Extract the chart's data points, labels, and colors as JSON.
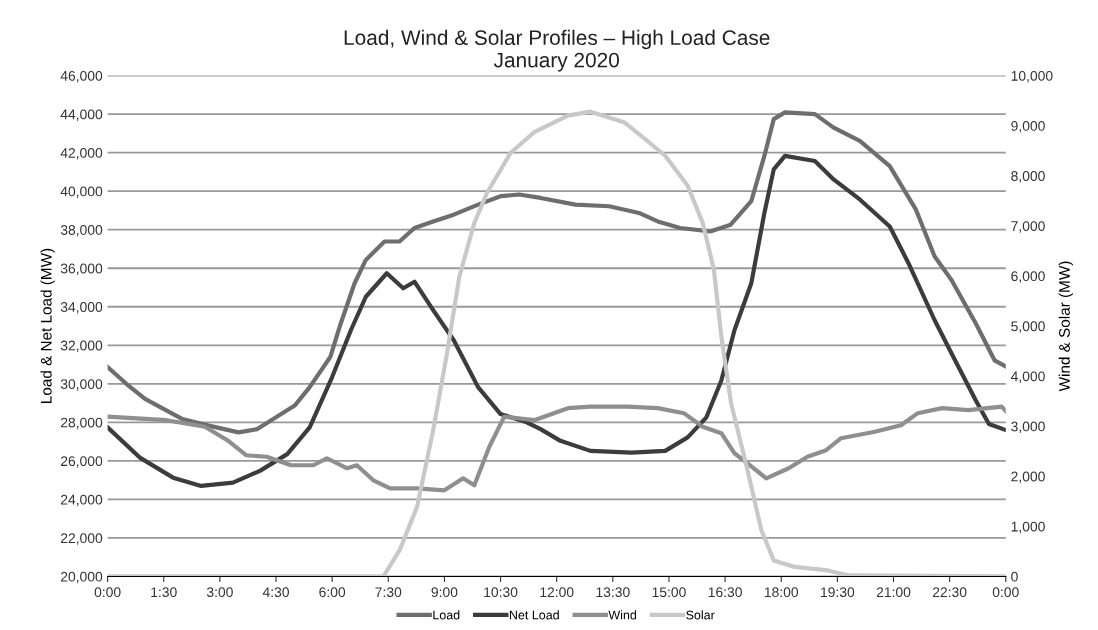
{
  "chart_data": {
    "type": "line",
    "title": "Load, Wind & Solar Profiles – High Load Case\nJanuary 2020",
    "ylabel": "Load & Net Load (MW)",
    "y2label": "Wind & Solar (MW)",
    "xlim": [
      0,
      24
    ],
    "xticks": [
      {
        "value": 0,
        "label": "0:00"
      },
      {
        "value": 1.5,
        "label": "1:30"
      },
      {
        "value": 3,
        "label": "3:00"
      },
      {
        "value": 4.5,
        "label": "4:30"
      },
      {
        "value": 6,
        "label": "6:00"
      },
      {
        "value": 7.5,
        "label": "7:30"
      },
      {
        "value": 9,
        "label": "9:00"
      },
      {
        "value": 10.5,
        "label": "10:30"
      },
      {
        "value": 12,
        "label": "12:00"
      },
      {
        "value": 13.5,
        "label": "13:30"
      },
      {
        "value": 15,
        "label": "15:00"
      },
      {
        "value": 16.5,
        "label": "16:30"
      },
      {
        "value": 18,
        "label": "18:00"
      },
      {
        "value": 19.5,
        "label": "19:30"
      },
      {
        "value": 21,
        "label": "21:00"
      },
      {
        "value": 22.5,
        "label": "22:30"
      },
      {
        "value": 24,
        "label": "0:00"
      }
    ],
    "ylim": [
      20000,
      46000
    ],
    "yticks": [
      {
        "value": 20000,
        "label": "20,000"
      },
      {
        "value": 22000,
        "label": "22,000"
      },
      {
        "value": 24000,
        "label": "24,000"
      },
      {
        "value": 26000,
        "label": "26,000"
      },
      {
        "value": 28000,
        "label": "28,000"
      },
      {
        "value": 30000,
        "label": "30,000"
      },
      {
        "value": 32000,
        "label": "32,000"
      },
      {
        "value": 34000,
        "label": "34,000"
      },
      {
        "value": 36000,
        "label": "36,000"
      },
      {
        "value": 38000,
        "label": "38,000"
      },
      {
        "value": 40000,
        "label": "40,000"
      },
      {
        "value": 42000,
        "label": "42,000"
      },
      {
        "value": 44000,
        "label": "44,000"
      },
      {
        "value": 46000,
        "label": "46,000"
      }
    ],
    "y2lim": [
      0,
      10000
    ],
    "y2ticks": [
      0,
      {
        "value": 1000,
        "label": "1,000"
      },
      {
        "value": 2000,
        "label": "2,000"
      },
      {
        "value": 3000,
        "label": "3,000"
      },
      {
        "value": 4000,
        "label": "4,000"
      },
      {
        "value": 5000,
        "label": "5,000"
      },
      {
        "value": 6000,
        "label": "6,000"
      },
      {
        "value": 7000,
        "label": "7,000"
      },
      {
        "value": 8000,
        "label": "8,000"
      },
      {
        "value": 9000,
        "label": "9,000"
      },
      {
        "value": 10000,
        "label": "10,000"
      }
    ],
    "grid": "y",
    "legend": "bottom",
    "marker": "none",
    "line_style": "solid",
    "series": [
      {
        "name": "Load",
        "color": "#6e6e6e",
        "x": [
          0,
          0.5,
          1,
          2,
          2.7,
          3.5,
          4,
          4.5,
          5,
          5.4,
          5.95,
          6.2,
          6.6,
          6.9,
          7.4,
          7.8,
          8.2,
          8.7,
          9.25,
          9.9,
          10.5,
          11,
          11.57,
          12.5,
          13.4,
          14.2,
          14.7,
          15.3,
          16.1,
          16.65,
          17.2,
          17.55,
          17.8,
          18.1,
          18.9,
          19.4,
          20.1,
          20.9,
          21.6,
          22.1,
          22.55,
          23.2,
          23.7,
          24
        ],
        "values": [
          30870,
          30000,
          29220,
          28170,
          27830,
          27480,
          27650,
          28260,
          28870,
          29830,
          31390,
          32960,
          35220,
          36430,
          37390,
          37390,
          38090,
          38430,
          38780,
          39300,
          39740,
          39830,
          39650,
          39300,
          39220,
          38870,
          38430,
          38090,
          37910,
          38260,
          39480,
          41830,
          43740,
          44090,
          44000,
          43300,
          42610,
          41300,
          39040,
          36610,
          35390,
          33130,
          31220,
          30900
        ]
      },
      {
        "name": "Net Load",
        "color": "#3c3c3c",
        "x": [
          0,
          0.86,
          1.75,
          2.5,
          3.35,
          4.07,
          4.8,
          5.4,
          6,
          6.5,
          6.9,
          7.46,
          7.9,
          8.2,
          8.7,
          9.25,
          9.9,
          10.5,
          11.2,
          11.57,
          12.1,
          12.9,
          14,
          14.9,
          15.5,
          16,
          16.4,
          16.75,
          17.2,
          17.55,
          17.8,
          18.1,
          18.9,
          19.4,
          20.1,
          20.9,
          21.4,
          22.1,
          22.6,
          23.2,
          23.55,
          24
        ],
        "values": [
          27740,
          26170,
          25130,
          24700,
          24870,
          25480,
          26350,
          27740,
          30350,
          32780,
          34520,
          35740,
          34960,
          35300,
          33830,
          32260,
          29830,
          28430,
          28000,
          27650,
          27040,
          26520,
          26430,
          26520,
          27220,
          28260,
          30170,
          32780,
          35220,
          38870,
          41130,
          41830,
          41570,
          40610,
          39570,
          38170,
          36260,
          33300,
          31390,
          29130,
          27910,
          27600
        ]
      },
      {
        "name": "Wind",
        "color": "#8f8f8f",
        "axis": "y2",
        "x": [
          0,
          1.57,
          2.6,
          3.2,
          3.7,
          4.25,
          4.9,
          5.5,
          5.86,
          6.4,
          6.66,
          7.1,
          7.55,
          8.27,
          9,
          9.5,
          9.8,
          10.2,
          10.6,
          11.4,
          12.3,
          12.9,
          13.9,
          14.7,
          15.4,
          15.9,
          16.4,
          16.75,
          17.1,
          17.6,
          18.2,
          18.7,
          19.2,
          19.6,
          20.5,
          21.2,
          21.65,
          22.3,
          23,
          23.89,
          24
        ],
        "values": [
          3190,
          3120,
          2990,
          2720,
          2420,
          2390,
          2220,
          2220,
          2360,
          2160,
          2220,
          1920,
          1760,
          1760,
          1720,
          1960,
          1820,
          2590,
          3190,
          3120,
          3360,
          3390,
          3390,
          3360,
          3260,
          2990,
          2860,
          2460,
          2260,
          1960,
          2160,
          2390,
          2520,
          2760,
          2890,
          3020,
          3260,
          3360,
          3320,
          3390,
          3300
        ]
      },
      {
        "name": "Solar",
        "color": "#c8c8c8",
        "axis": "y2",
        "x": [
          0,
          7.37,
          7.8,
          8.27,
          8.7,
          9.07,
          9.4,
          9.8,
          10.14,
          10.77,
          11.4,
          12.3,
          12.9,
          13.8,
          14.25,
          14.9,
          15.5,
          15.9,
          16.2,
          16.4,
          16.66,
          17.1,
          17.47,
          17.8,
          18.36,
          19.25,
          19.8,
          24
        ],
        "values": [
          0,
          0,
          520,
          1390,
          2920,
          4460,
          5990,
          7060,
          7660,
          8460,
          8870,
          9200,
          9280,
          9070,
          8800,
          8400,
          7800,
          7060,
          6130,
          4790,
          3460,
          2120,
          920,
          320,
          190,
          120,
          20,
          0
        ]
      }
    ]
  }
}
